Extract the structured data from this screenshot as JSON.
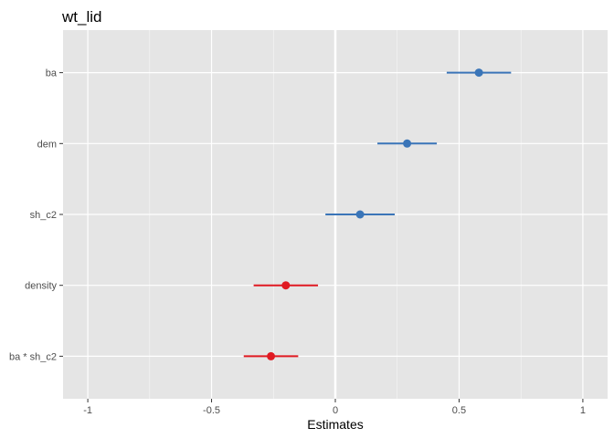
{
  "chart_data": {
    "type": "scatter",
    "title": "wt_lid",
    "xlabel": "Estimates",
    "ylabel": "",
    "xlim": [
      -1.1,
      1.1
    ],
    "x_ticks": [
      -1,
      -0.5,
      0,
      0.5,
      1
    ],
    "x_tick_labels": [
      "-1",
      "-0.5",
      "0",
      "0.5",
      "1"
    ],
    "x_minor_ticks": [
      -0.75,
      -0.25,
      0.25,
      0.75
    ],
    "reference_line": 0,
    "grid": true,
    "categories": [
      "ba",
      "dem",
      "sh_c2",
      "density",
      "ba * sh_c2"
    ],
    "estimates": [
      0.58,
      0.29,
      0.1,
      -0.2,
      -0.26
    ],
    "conf_low": [
      0.45,
      0.17,
      -0.04,
      -0.33,
      -0.37
    ],
    "conf_high": [
      0.71,
      0.41,
      0.24,
      -0.07,
      -0.15
    ],
    "colors": {
      "positive": "#3a75b8",
      "negative": "#e01a22",
      "panel_bg": "#e5e5e5",
      "grid": "#ffffff"
    }
  }
}
